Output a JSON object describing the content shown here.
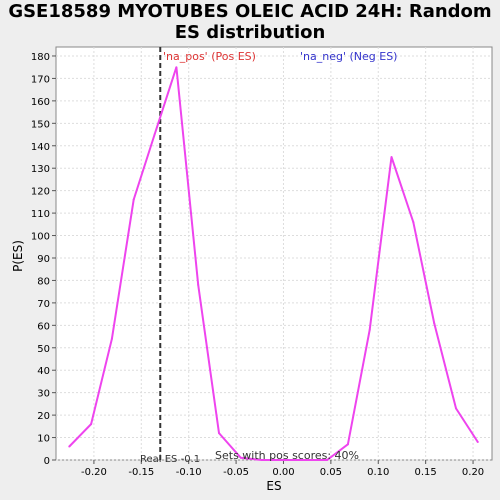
{
  "chart_data": {
    "type": "line",
    "title": "GSE18589 MYOTUBES OLEIC ACID 24H: Random ES distribution",
    "xlabel": "ES",
    "ylabel": "P(ES)",
    "xlim": [
      -0.24,
      0.22
    ],
    "ylim": [
      0,
      184
    ],
    "xticks": [
      "-0.20",
      "-0.15",
      "-0.10",
      "-0.05",
      "0.00",
      "0.05",
      "0.10",
      "0.15",
      "0.20"
    ],
    "yticks": [
      0,
      10,
      20,
      30,
      40,
      50,
      60,
      70,
      80,
      90,
      100,
      110,
      120,
      130,
      140,
      150,
      160,
      170,
      180
    ],
    "grid": true,
    "series": [
      {
        "color": "#ee44ee",
        "x": [
          -0.226,
          -0.203,
          -0.181,
          -0.158,
          -0.136,
          -0.113,
          -0.09,
          -0.068,
          -0.045,
          -0.023,
          0.0,
          0.023,
          0.046,
          0.068,
          0.091,
          0.114,
          0.137,
          0.159,
          0.182,
          0.205
        ],
        "y": [
          6,
          16,
          54,
          116,
          145,
          175,
          78,
          12,
          1,
          0,
          0,
          0,
          0,
          7,
          58,
          135,
          106,
          61,
          23,
          8
        ]
      }
    ],
    "real_es": {
      "x": -0.13,
      "label": "Real ES -0.1"
    },
    "annotations": {
      "pos_label": "'na_pos' (Pos ES)",
      "neg_label": "'na_neg' (Neg ES)",
      "sets_text": "Sets with pos scores: 40%"
    },
    "colors": {
      "curve": "#ee44ee",
      "pos": "#dd3333",
      "neg": "#3333cc",
      "grid": "#dddddd"
    }
  }
}
